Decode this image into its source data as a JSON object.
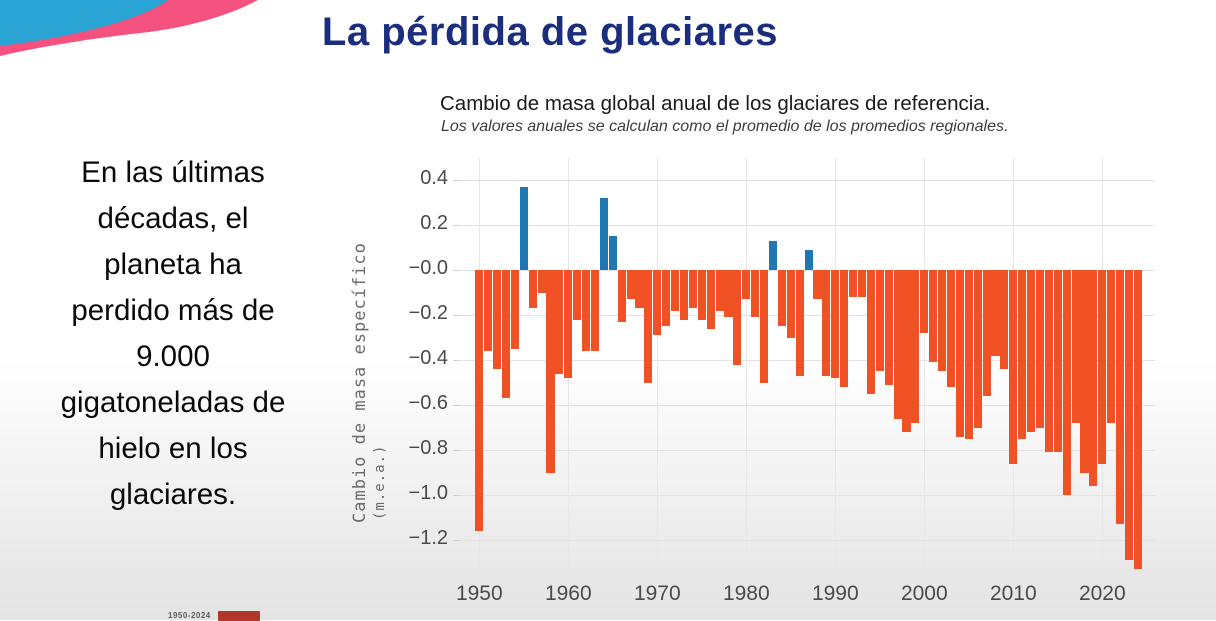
{
  "slide": {
    "title": "La pérdida de glaciares",
    "body_text": "En las últimas\ndécadas, el\nplaneta ha\nperdido más de\n9.000\ngigatoneladas de\nhielo en los\nglaciares.",
    "footer_range": "1950-2024",
    "colors": {
      "title": "#1b2d7d",
      "decoration_blue": "#2aa3d5",
      "decoration_pink": "#f4517e"
    }
  },
  "chart_data": {
    "type": "bar",
    "title": "Cambio de masa global anual de los glaciares de referencia.",
    "subtitle": "Los valores anuales se calculan como el promedio de los promedios regionales.",
    "ylabel": "Cambio de masa específico",
    "ylabel_units": "(m.e.a.)",
    "xlabel": "",
    "ylim": [
      -1.35,
      0.45
    ],
    "xlim": [
      1948,
      2026
    ],
    "grid": true,
    "legend": "none",
    "positive_color": "#1f77b4",
    "negative_color": "#f05226",
    "ytick_values": [
      0.4,
      0.2,
      0.0,
      -0.2,
      -0.4,
      -0.6,
      -0.8,
      -1.0,
      -1.2
    ],
    "ytick_labels": [
      "0.4",
      "0.2",
      "−0.0",
      "−0.2",
      "−0.4",
      "−0.6",
      "−0.8",
      "−1.0",
      "−1.2"
    ],
    "xtick_values": [
      1950,
      1960,
      1970,
      1980,
      1990,
      2000,
      2010,
      2020
    ],
    "xtick_labels": [
      "1950",
      "1960",
      "1970",
      "1980",
      "1990",
      "2000",
      "2010",
      "2020"
    ],
    "years": [
      1950,
      1951,
      1952,
      1953,
      1954,
      1955,
      1956,
      1957,
      1958,
      1959,
      1960,
      1961,
      1962,
      1963,
      1964,
      1965,
      1966,
      1967,
      1968,
      1969,
      1970,
      1971,
      1972,
      1973,
      1974,
      1975,
      1976,
      1977,
      1978,
      1979,
      1980,
      1981,
      1982,
      1983,
      1984,
      1985,
      1986,
      1987,
      1988,
      1989,
      1990,
      1991,
      1992,
      1993,
      1994,
      1995,
      1996,
      1997,
      1998,
      1999,
      2000,
      2001,
      2002,
      2003,
      2004,
      2005,
      2006,
      2007,
      2008,
      2009,
      2010,
      2011,
      2012,
      2013,
      2014,
      2015,
      2016,
      2017,
      2018,
      2019,
      2020,
      2021,
      2022,
      2023,
      2024
    ],
    "values": [
      -1.16,
      -0.36,
      -0.44,
      -0.57,
      -0.35,
      0.37,
      -0.17,
      -0.1,
      -0.9,
      -0.46,
      -0.48,
      -0.22,
      -0.36,
      -0.36,
      0.32,
      0.15,
      -0.23,
      -0.13,
      -0.17,
      -0.5,
      -0.29,
      -0.25,
      -0.18,
      -0.22,
      -0.17,
      -0.22,
      -0.26,
      -0.18,
      -0.21,
      -0.42,
      -0.13,
      -0.21,
      -0.5,
      0.13,
      -0.25,
      -0.3,
      -0.47,
      0.09,
      -0.13,
      -0.47,
      -0.48,
      -0.52,
      -0.12,
      -0.12,
      -0.55,
      -0.45,
      -0.51,
      -0.66,
      -0.72,
      -0.68,
      -0.28,
      -0.41,
      -0.45,
      -0.52,
      -0.74,
      -0.75,
      -0.7,
      -0.56,
      -0.38,
      -0.44,
      -0.86,
      -0.75,
      -0.72,
      -0.7,
      -0.81,
      -0.81,
      -1.0,
      -0.68,
      -0.9,
      -0.96,
      -0.86,
      -0.68,
      -1.13,
      -1.29,
      -1.33
    ]
  }
}
